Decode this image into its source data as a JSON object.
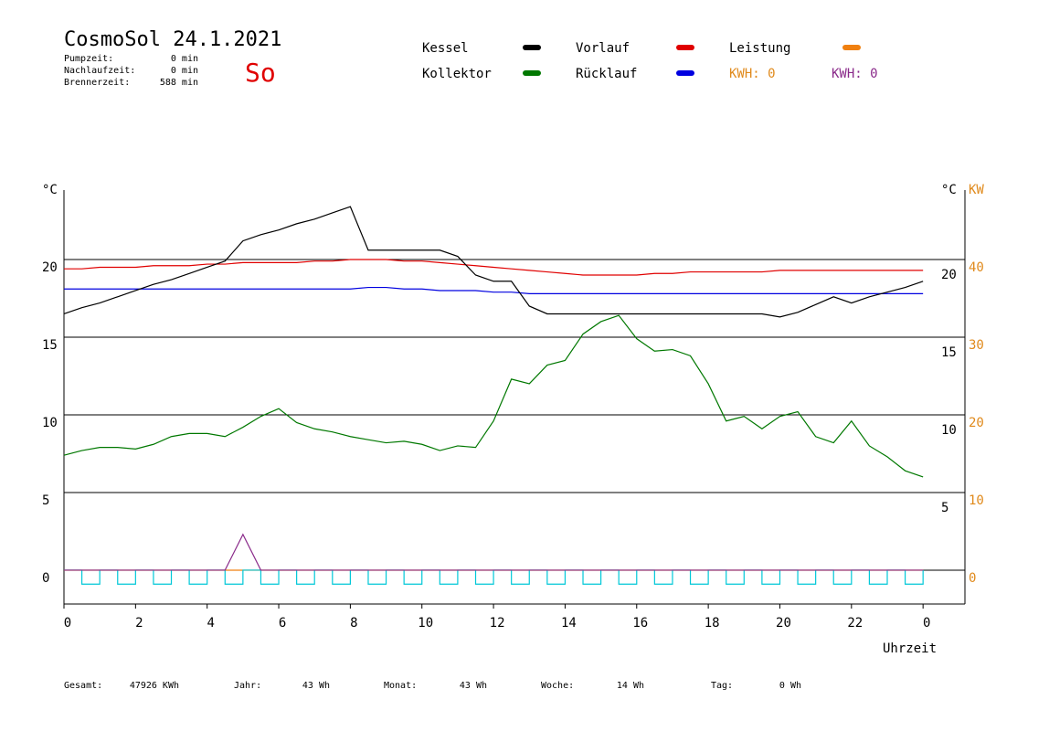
{
  "header": {
    "title": "CosmoSol 24.1.2021",
    "day": "So",
    "stats": [
      {
        "label": "Pumpzeit:",
        "value": "0 min"
      },
      {
        "label": "Nachlaufzeit:",
        "value": "0 min"
      },
      {
        "label": "Brennerzeit:",
        "value": "588 min"
      }
    ]
  },
  "kwh_labels": [
    {
      "text": "KWH: 0",
      "color": "#e08a1c"
    },
    {
      "text": "KWH: 0",
      "color": "#8a2a8a"
    }
  ],
  "footer": [
    {
      "label": "Gesamt:",
      "value": "47926 KWh"
    },
    {
      "label": "Jahr:",
      "value": "43 Wh"
    },
    {
      "label": "Monat:",
      "value": "43 Wh"
    },
    {
      "label": "Woche:",
      "value": "14 Wh"
    },
    {
      "label": "Tag:",
      "value": "0 Wh"
    }
  ],
  "chart_data": {
    "type": "line",
    "y_unit_left": "°C",
    "y_unit_right": "°C",
    "y2_unit": "KW",
    "xlabel": "Uhrzeit",
    "x": [
      0,
      0.5,
      1,
      1.5,
      2,
      2.5,
      3,
      3.5,
      4,
      4.5,
      5,
      5.5,
      6,
      6.5,
      7,
      7.5,
      8,
      8.5,
      9,
      9.5,
      10,
      10.5,
      11,
      11.5,
      12,
      12.5,
      13,
      13.5,
      14,
      14.5,
      15,
      15.5,
      16,
      16.5,
      17,
      17.5,
      18,
      18.5,
      19,
      19.5,
      20,
      20.5,
      21,
      21.5,
      22,
      22.5,
      23,
      23.5,
      24
    ],
    "xlim": [
      0,
      25.17
    ],
    "xticks": [
      0,
      2,
      4,
      6,
      8,
      10,
      12,
      14,
      16,
      18,
      20,
      22,
      {
        "value": 24,
        "label": "0"
      }
    ],
    "ylim": [
      -2.18,
      24.47
    ],
    "yticks": [
      0,
      5,
      10,
      15,
      20
    ],
    "yticks_right": [
      5,
      10,
      15,
      20
    ],
    "y2lim": [
      -4.35,
      48.94
    ],
    "y2ticks": [
      0,
      10,
      20,
      30,
      40
    ],
    "y2_color": "#e08a1c",
    "grid": true,
    "series": [
      {
        "name": "Kessel",
        "color": "#000000",
        "values": [
          16.5,
          16.9,
          17.2,
          17.6,
          18.0,
          18.4,
          18.7,
          19.1,
          19.5,
          19.9,
          21.2,
          21.6,
          21.9,
          22.3,
          22.6,
          23.0,
          23.4,
          20.6,
          20.6,
          20.6,
          20.6,
          20.6,
          20.2,
          19.0,
          18.6,
          18.6,
          17.0,
          16.5,
          16.5,
          16.5,
          16.5,
          16.5,
          16.5,
          16.5,
          16.5,
          16.5,
          16.5,
          16.5,
          16.5,
          16.5,
          16.3,
          16.6,
          17.1,
          17.6,
          17.2,
          17.6,
          17.9,
          18.2,
          18.6
        ]
      },
      {
        "name": "Vorlauf",
        "color": "#e00000",
        "values": [
          19.4,
          19.4,
          19.5,
          19.5,
          19.5,
          19.6,
          19.6,
          19.6,
          19.7,
          19.7,
          19.8,
          19.8,
          19.8,
          19.8,
          19.9,
          19.9,
          20.0,
          20.0,
          20.0,
          19.9,
          19.9,
          19.8,
          19.7,
          19.6,
          19.5,
          19.4,
          19.3,
          19.2,
          19.1,
          19.0,
          19.0,
          19.0,
          19.0,
          19.1,
          19.1,
          19.2,
          19.2,
          19.2,
          19.2,
          19.2,
          19.3,
          19.3,
          19.3,
          19.3,
          19.3,
          19.3,
          19.3,
          19.3,
          19.3
        ]
      },
      {
        "name": "Rücklauf",
        "color": "#0000e0",
        "values": [
          18.1,
          18.1,
          18.1,
          18.1,
          18.1,
          18.1,
          18.1,
          18.1,
          18.1,
          18.1,
          18.1,
          18.1,
          18.1,
          18.1,
          18.1,
          18.1,
          18.1,
          18.2,
          18.2,
          18.1,
          18.1,
          18.0,
          18.0,
          18.0,
          17.9,
          17.9,
          17.8,
          17.8,
          17.8,
          17.8,
          17.8,
          17.8,
          17.8,
          17.8,
          17.8,
          17.8,
          17.8,
          17.8,
          17.8,
          17.8,
          17.8,
          17.8,
          17.8,
          17.8,
          17.8,
          17.8,
          17.8,
          17.8,
          17.8
        ]
      },
      {
        "name": "Kollektor",
        "color": "#007800",
        "values": [
          7.4,
          7.7,
          7.9,
          7.9,
          7.8,
          8.1,
          8.6,
          8.8,
          8.8,
          8.6,
          9.2,
          9.9,
          10.4,
          9.5,
          9.1,
          8.9,
          8.6,
          8.4,
          8.2,
          8.3,
          8.1,
          7.7,
          8.0,
          7.9,
          9.6,
          12.3,
          12.0,
          13.2,
          13.5,
          15.2,
          16.0,
          16.4,
          14.9,
          14.1,
          14.2,
          13.8,
          12.0,
          9.6,
          9.9,
          9.1,
          9.9,
          10.2,
          8.6,
          8.2,
          9.6,
          8.0,
          7.3,
          6.4,
          6.0
        ]
      },
      {
        "name": "Leistung",
        "color": "#f08010",
        "axis": "y2",
        "values": [
          0,
          0,
          0,
          0,
          0,
          0,
          0,
          0,
          0,
          0,
          0,
          0,
          0,
          0,
          0,
          0,
          0,
          0,
          0,
          0,
          0,
          0,
          0,
          0,
          0,
          0,
          0,
          0,
          0,
          0,
          0,
          0,
          0,
          0,
          0,
          0,
          0,
          0,
          0,
          0,
          0,
          0,
          0,
          0,
          0,
          0,
          0,
          0,
          0
        ]
      },
      {
        "color": "#8a2a8a",
        "values": [
          0,
          0,
          0,
          0,
          0,
          0,
          0,
          0,
          0,
          0,
          2.3,
          0,
          0,
          0,
          0,
          0,
          0,
          0,
          0,
          0,
          0,
          0,
          0,
          0,
          0,
          0,
          0,
          0,
          0,
          0,
          0,
          0,
          0,
          0,
          0,
          0,
          0,
          0,
          0,
          0,
          0,
          0,
          0,
          0,
          0,
          0,
          0,
          0,
          0
        ]
      },
      {
        "color": "#00c8d8",
        "step": true,
        "values": [
          0,
          -0.9,
          0,
          -0.9,
          0,
          -0.9,
          0,
          -0.9,
          0,
          -0.9,
          0,
          -0.9,
          0,
          -0.9,
          0,
          -0.9,
          0,
          -0.9,
          0,
          -0.9,
          0,
          -0.9,
          0,
          -0.9,
          0,
          -0.9,
          0,
          -0.9,
          0,
          -0.9,
          0,
          -0.9,
          0,
          -0.9,
          0,
          -0.9,
          0,
          -0.9,
          0,
          -0.9,
          0,
          -0.9,
          0,
          -0.9,
          0,
          -0.9,
          0,
          -0.9,
          0
        ]
      }
    ]
  }
}
